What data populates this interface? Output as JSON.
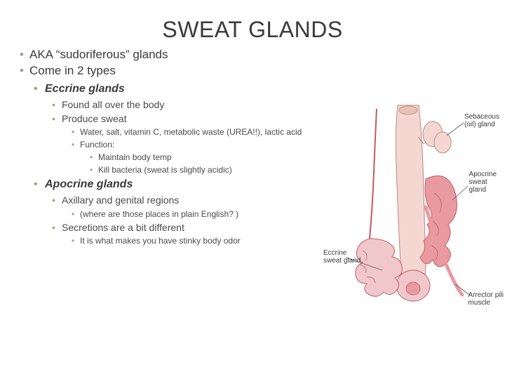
{
  "title": "SWEAT GLANDS",
  "bullets": {
    "l1a": "AKA “sudoriferous” glands",
    "l1b": "Come in 2 types",
    "eccrine": "Eccrine glands",
    "ecc1": "Found all over the body",
    "ecc2": "Produce sweat",
    "ecc2a": "Water, salt, vitamin C, metabolic waste (UREA!!), lactic acid",
    "ecc2b": "Function:",
    "ecc2b1": "Maintain body temp",
    "ecc2b2": "Kill bacteria (sweat is slightly acidic)",
    "apocrine": "Apocrine glands",
    "apo1": "Axillary and genital regions",
    "apo1a": "(where are those places in plain English? )",
    "apo2": "Secretions are a bit different",
    "apo2a": "It is what makes you have stinky body odor"
  },
  "diagram": {
    "labels": {
      "sebaceous": "Sebaceous\n(oil) gland",
      "apocrine": "Apocrine\nsweat\ngland",
      "eccrine": "Eccrine\nsweat gland",
      "arrector": "Arrector pili\nmuscle"
    },
    "colors": {
      "follicle_fill": "#f4d7d0",
      "follicle_stroke": "#b98a80",
      "gland_fill": "#e89aa0",
      "gland_stroke": "#c45a62",
      "eccrine_fill": "#f0c8cc",
      "eccrine_stroke": "#c45a62",
      "leader": "#555555",
      "bg": "#ffffff"
    }
  },
  "style": {
    "title_color": "#3a3a3a",
    "text_color": "#4a4a4a",
    "bullet_gray": "#9a9a9a",
    "bullet_tan": "#b59a6a",
    "title_fontsize": 32,
    "l1_fontsize": 17,
    "l2_fontsize": 16,
    "l3_fontsize": 14,
    "l4_fontsize": 12
  }
}
